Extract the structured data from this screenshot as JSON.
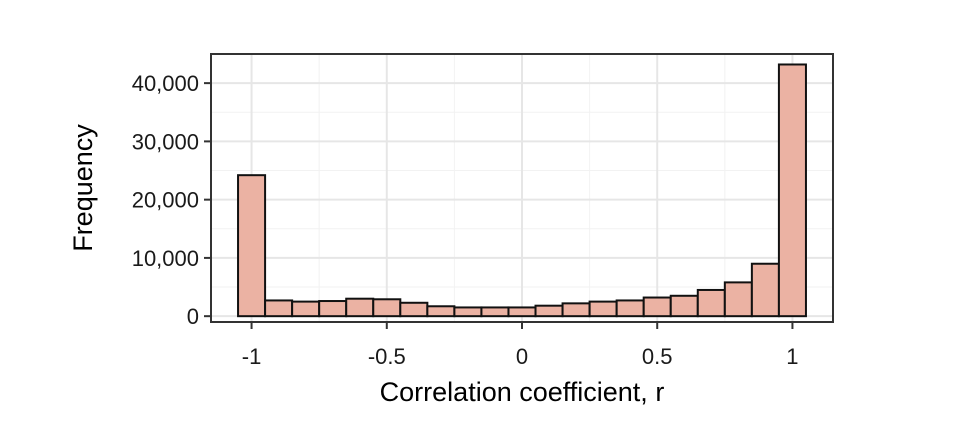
{
  "chart_data": {
    "type": "bar",
    "title": "",
    "xlabel": "Correlation coefficient, r",
    "ylabel": "Frequency",
    "xlim": [
      -1.15,
      1.15
    ],
    "ylim": [
      -1000,
      45000
    ],
    "x_ticks": [
      {
        "value": -1,
        "label": "-1"
      },
      {
        "value": -0.5,
        "label": "-0.5"
      },
      {
        "value": 0,
        "label": "0"
      },
      {
        "value": 0.5,
        "label": "0.5"
      },
      {
        "value": 1,
        "label": "1"
      }
    ],
    "y_ticks": [
      {
        "value": 0,
        "label": "0"
      },
      {
        "value": 10000,
        "label": "10,000"
      },
      {
        "value": 20000,
        "label": "20,000"
      },
      {
        "value": 30000,
        "label": "30,000"
      },
      {
        "value": 40000,
        "label": "40,000"
      }
    ],
    "grid": true,
    "bin_width": 0.1,
    "bins": [
      {
        "x": -1.0,
        "y": 24200
      },
      {
        "x": -0.9,
        "y": 2700
      },
      {
        "x": -0.8,
        "y": 2500
      },
      {
        "x": -0.7,
        "y": 2600
      },
      {
        "x": -0.6,
        "y": 3000
      },
      {
        "x": -0.5,
        "y": 2900
      },
      {
        "x": -0.4,
        "y": 2300
      },
      {
        "x": -0.3,
        "y": 1700
      },
      {
        "x": -0.2,
        "y": 1500
      },
      {
        "x": -0.1,
        "y": 1500
      },
      {
        "x": 0.0,
        "y": 1500
      },
      {
        "x": 0.1,
        "y": 1800
      },
      {
        "x": 0.2,
        "y": 2200
      },
      {
        "x": 0.3,
        "y": 2500
      },
      {
        "x": 0.4,
        "y": 2700
      },
      {
        "x": 0.5,
        "y": 3200
      },
      {
        "x": 0.6,
        "y": 3500
      },
      {
        "x": 0.7,
        "y": 4500
      },
      {
        "x": 0.8,
        "y": 5800
      },
      {
        "x": 0.9,
        "y": 9000
      },
      {
        "x": 1.0,
        "y": 43200
      }
    ],
    "colors": {
      "bar_fill": "#ebb2a3",
      "bar_stroke": "#111111",
      "grid_major": "#e6e6e6",
      "grid_minor": "#f2f2f2",
      "panel_border": "#333333"
    }
  }
}
